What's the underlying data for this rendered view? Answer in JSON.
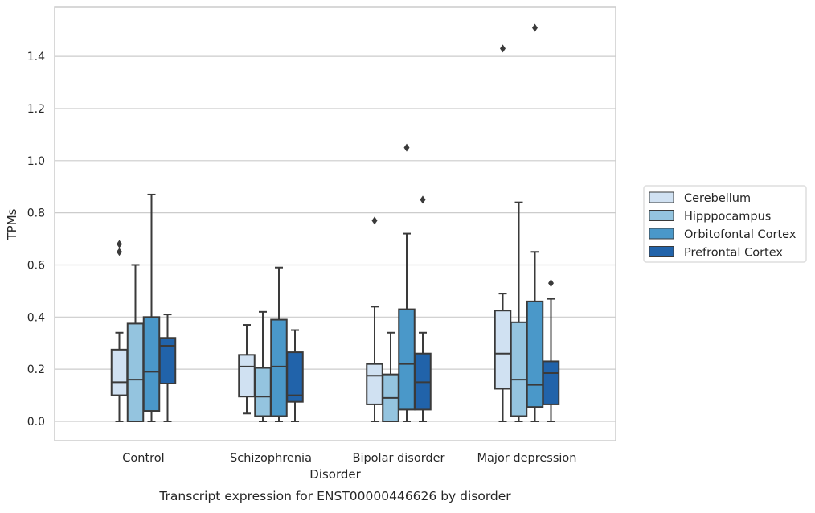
{
  "chart_data": {
    "type": "box",
    "xlabel": "Disorder",
    "ylabel": "TPMs",
    "caption": "Transcript expression for ENST00000446626 by disorder",
    "ylim": [
      -0.07,
      1.6
    ],
    "yticks": [
      "0.0",
      "0.2",
      "0.4",
      "0.6",
      "0.8",
      "1.0",
      "1.2",
      "1.4"
    ],
    "grid": true,
    "legend_position": "right",
    "categories": [
      "Control",
      "Schizophrenia",
      "Bipolar disorder",
      "Major depression"
    ],
    "series": [
      {
        "name": "Cerebellum",
        "color": "#d0e1f2",
        "boxes": [
          {
            "whislo": 0.0,
            "q1": 0.1,
            "med": 0.15,
            "q3": 0.275,
            "whishi": 0.34,
            "fliers": [
              0.65,
              0.68
            ]
          },
          {
            "whislo": 0.03,
            "q1": 0.095,
            "med": 0.21,
            "q3": 0.255,
            "whishi": 0.37,
            "fliers": []
          },
          {
            "whislo": 0.0,
            "q1": 0.065,
            "med": 0.175,
            "q3": 0.22,
            "whishi": 0.44,
            "fliers": [
              0.77
            ]
          },
          {
            "whislo": 0.0,
            "q1": 0.125,
            "med": 0.26,
            "q3": 0.425,
            "whishi": 0.49,
            "fliers": [
              1.43
            ]
          }
        ]
      },
      {
        "name": "Hipppocampus",
        "color": "#94c4df",
        "boxes": [
          {
            "whislo": 0.0,
            "q1": 0.0,
            "med": 0.16,
            "q3": 0.375,
            "whishi": 0.6,
            "fliers": []
          },
          {
            "whislo": 0.0,
            "q1": 0.02,
            "med": 0.095,
            "q3": 0.205,
            "whishi": 0.42,
            "fliers": []
          },
          {
            "whislo": 0.0,
            "q1": 0.0,
            "med": 0.09,
            "q3": 0.18,
            "whishi": 0.34,
            "fliers": []
          },
          {
            "whislo": 0.0,
            "q1": 0.02,
            "med": 0.16,
            "q3": 0.38,
            "whishi": 0.84,
            "fliers": []
          }
        ]
      },
      {
        "name": "Orbitofontal Cortex",
        "color": "#4a98c9",
        "boxes": [
          {
            "whislo": 0.0,
            "q1": 0.04,
            "med": 0.19,
            "q3": 0.4,
            "whishi": 0.87,
            "fliers": []
          },
          {
            "whislo": 0.0,
            "q1": 0.02,
            "med": 0.21,
            "q3": 0.39,
            "whishi": 0.59,
            "fliers": []
          },
          {
            "whislo": 0.0,
            "q1": 0.045,
            "med": 0.22,
            "q3": 0.43,
            "whishi": 0.72,
            "fliers": [
              1.05
            ]
          },
          {
            "whislo": 0.0,
            "q1": 0.055,
            "med": 0.14,
            "q3": 0.46,
            "whishi": 0.65,
            "fliers": [
              1.51
            ]
          }
        ]
      },
      {
        "name": "Prefrontal Cortex",
        "color": "#2163aa",
        "boxes": [
          {
            "whislo": 0.0,
            "q1": 0.145,
            "med": 0.29,
            "q3": 0.32,
            "whishi": 0.41,
            "fliers": []
          },
          {
            "whislo": 0.0,
            "q1": 0.075,
            "med": 0.1,
            "q3": 0.265,
            "whishi": 0.35,
            "fliers": []
          },
          {
            "whislo": 0.0,
            "q1": 0.045,
            "med": 0.15,
            "q3": 0.26,
            "whishi": 0.34,
            "fliers": [
              0.85
            ]
          },
          {
            "whislo": 0.0,
            "q1": 0.065,
            "med": 0.185,
            "q3": 0.23,
            "whishi": 0.47,
            "fliers": [
              0.53
            ]
          }
        ]
      }
    ]
  }
}
